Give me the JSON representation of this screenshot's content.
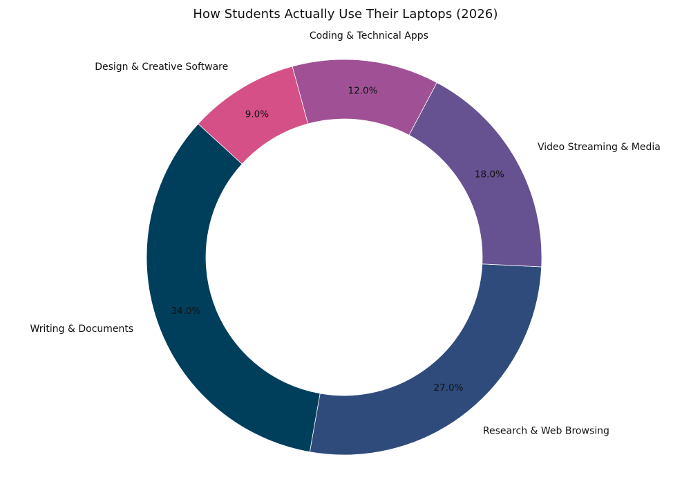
{
  "chart_data": {
    "type": "pie",
    "title": "How Students Actually Use Their Laptops (2026)",
    "slices": [
      {
        "label": "Writing & Documents",
        "value": 34.0,
        "color": "#003f5c"
      },
      {
        "label": "Research & Web Browsing",
        "value": 27.0,
        "color": "#2f4b7c"
      },
      {
        "label": "Video Streaming & Media",
        "value": 18.0,
        "color": "#665191"
      },
      {
        "label": "Coding & Technical Apps",
        "value": 12.0,
        "color": "#a05195"
      },
      {
        "label": "Design & Creative Software",
        "value": 9.0,
        "color": "#d45087"
      }
    ],
    "value_format": "percent_1dp",
    "donut": true,
    "legend": "none"
  }
}
